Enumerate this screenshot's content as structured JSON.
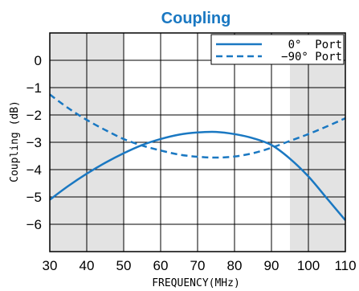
{
  "chart_data": {
    "type": "line",
    "title": "Coupling",
    "xlabel": "FREQUENCY(MHz)",
    "ylabel": "Coupling (dB)",
    "xlim": [
      30,
      110
    ],
    "ylim": [
      -7,
      1
    ],
    "x_ticks": [
      "30",
      "40",
      "50",
      "60",
      "70",
      "80",
      "90",
      "100",
      "110"
    ],
    "y_ticks": [
      "0",
      "−1",
      "−2",
      "−3",
      "−4",
      "−5",
      "−6"
    ],
    "grid": true,
    "legend_position": "top-right",
    "shaded_ranges": [
      [
        30,
        50
      ],
      [
        95,
        110
      ]
    ],
    "series": [
      {
        "name": "0°  Port",
        "style": "solid",
        "x": [
          30,
          35,
          40,
          45,
          50,
          55,
          60,
          65,
          70,
          75,
          80,
          85,
          90,
          95,
          100,
          105,
          110
        ],
        "y": [
          -5.1,
          -4.6,
          -4.15,
          -3.75,
          -3.4,
          -3.1,
          -2.88,
          -2.72,
          -2.64,
          -2.62,
          -2.7,
          -2.85,
          -3.1,
          -3.6,
          -4.25,
          -5.05,
          -5.85
        ]
      },
      {
        "name": "−90° Port",
        "style": "dashed",
        "x": [
          30,
          35,
          40,
          45,
          50,
          55,
          60,
          65,
          70,
          75,
          80,
          85,
          90,
          95,
          100,
          105,
          110
        ],
        "y": [
          -1.25,
          -1.75,
          -2.18,
          -2.55,
          -2.88,
          -3.12,
          -3.3,
          -3.45,
          -3.53,
          -3.56,
          -3.52,
          -3.4,
          -3.2,
          -2.95,
          -2.7,
          -2.42,
          -2.12
        ]
      }
    ],
    "colors": {
      "title": "#1a78c2",
      "line": "#1a78c2",
      "shade": "#e3e3e3",
      "grid": "#000000"
    }
  }
}
